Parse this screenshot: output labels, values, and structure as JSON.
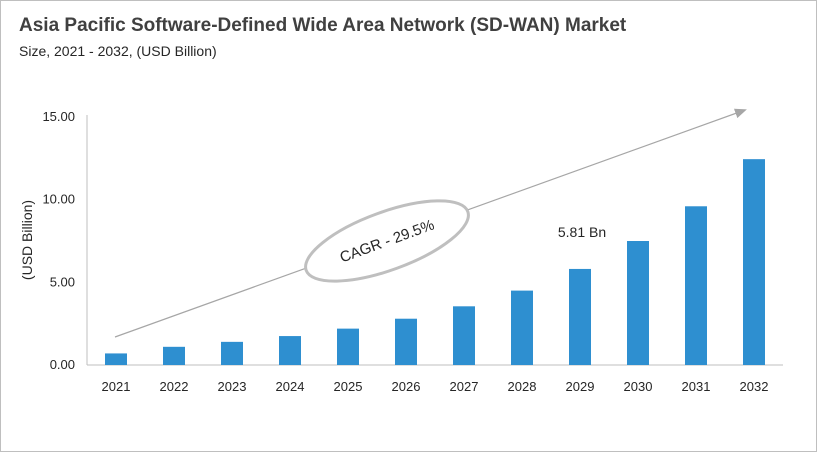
{
  "header": {
    "title": "Asia Pacific Software-Defined Wide Area Network (SD-WAN) Market",
    "subtitle": "Size, 2021 - 2032, (USD Billion)"
  },
  "chart_data": {
    "type": "bar",
    "categories": [
      "2021",
      "2022",
      "2023",
      "2024",
      "2025",
      "2026",
      "2027",
      "2028",
      "2029",
      "2030",
      "2031",
      "2032"
    ],
    "values": [
      0.7,
      1.1,
      1.4,
      1.75,
      2.2,
      2.8,
      3.55,
      4.5,
      5.81,
      7.5,
      9.6,
      12.45
    ],
    "ylabel": "(USD Billion)",
    "ylim": [
      0,
      15
    ],
    "yticks": [
      "0.00",
      "5.00",
      "10.00",
      "15.00"
    ],
    "bar_color": "#2e8fd0",
    "data_labels": [
      {
        "category": "2029",
        "text": "5.81 Bn"
      }
    ],
    "annotation": {
      "text": "CAGR - 29.5%"
    },
    "grid": false,
    "legend": "none"
  }
}
